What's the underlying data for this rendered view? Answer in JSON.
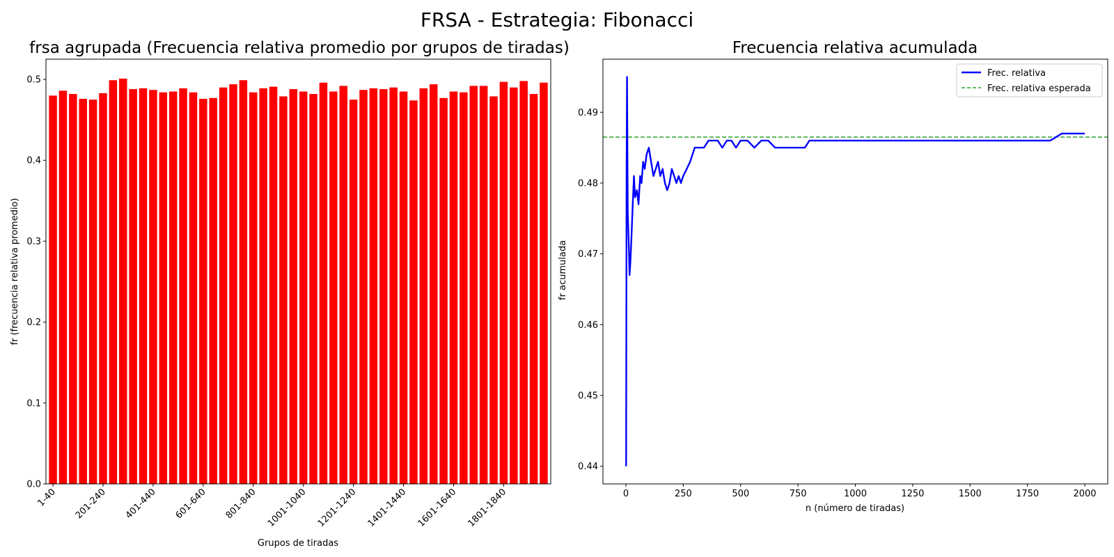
{
  "figure": {
    "title": "FRSA - Estrategia: Fibonacci"
  },
  "chart_data": [
    {
      "type": "bar",
      "title": "frsa agrupada (Frecuencia relativa promedio por grupos de tiradas)",
      "xlabel": "Grupos de tiradas",
      "ylabel": "fr (frecuencia relativa promedio)",
      "ylim": [
        0,
        0.525
      ],
      "yticks": [
        0.0,
        0.1,
        0.2,
        0.3,
        0.4,
        0.5
      ],
      "ytick_labels": [
        "0.0",
        "0.1",
        "0.2",
        "0.3",
        "0.4",
        "0.5"
      ],
      "bar_color": "#ff0000",
      "grid": false,
      "categories": [
        "1-40",
        "41-80",
        "81-120",
        "121-160",
        "161-200",
        "201-240",
        "241-280",
        "281-320",
        "321-360",
        "361-400",
        "401-440",
        "441-480",
        "481-520",
        "521-560",
        "561-600",
        "601-640",
        "641-680",
        "681-720",
        "721-760",
        "761-800",
        "801-840",
        "841-880",
        "881-920",
        "921-960",
        "961-1000",
        "1001-1040",
        "1041-1080",
        "1081-1120",
        "1121-1160",
        "1161-1200",
        "1201-1240",
        "1241-1280",
        "1281-1320",
        "1321-1360",
        "1361-1400",
        "1401-1440",
        "1441-1480",
        "1481-1520",
        "1521-1560",
        "1561-1600",
        "1601-1640",
        "1641-1680",
        "1681-1720",
        "1721-1760",
        "1761-1800",
        "1801-1840",
        "1841-1880",
        "1881-1920",
        "1921-1960",
        "1961-2000"
      ],
      "tick_categories": [
        "1-40",
        "201-240",
        "401-440",
        "601-640",
        "801-840",
        "1001-1040",
        "1201-1240",
        "1401-1440",
        "1601-1640",
        "1801-1840"
      ],
      "values": [
        0.48,
        0.486,
        0.482,
        0.476,
        0.475,
        0.483,
        0.499,
        0.501,
        0.488,
        0.489,
        0.487,
        0.484,
        0.485,
        0.489,
        0.484,
        0.476,
        0.477,
        0.49,
        0.494,
        0.499,
        0.484,
        0.489,
        0.491,
        0.479,
        0.488,
        0.485,
        0.482,
        0.496,
        0.485,
        0.492,
        0.475,
        0.487,
        0.489,
        0.488,
        0.49,
        0.485,
        0.474,
        0.489,
        0.494,
        0.477,
        0.485,
        0.484,
        0.492,
        0.492,
        0.479,
        0.497,
        0.49,
        0.498,
        0.482,
        0.496
      ]
    },
    {
      "type": "line",
      "title": "Frecuencia relativa acumulada",
      "xlabel": "n (número de tiradas)",
      "ylabel": "fr acumulada",
      "xlim": [
        -100,
        2100
      ],
      "ylim": [
        0.4375,
        0.4975
      ],
      "xticks": [
        0,
        250,
        500,
        750,
        1000,
        1250,
        1500,
        1750,
        2000
      ],
      "xtick_labels": [
        "0",
        "250",
        "500",
        "750",
        "1000",
        "1250",
        "1500",
        "1750",
        "2000"
      ],
      "yticks": [
        0.44,
        0.45,
        0.46,
        0.47,
        0.48,
        0.49
      ],
      "ytick_labels": [
        "0.44",
        "0.45",
        "0.46",
        "0.47",
        "0.48",
        "0.49"
      ],
      "grid": false,
      "legend": {
        "position": "top-right"
      },
      "series": [
        {
          "name": "Frec. relativa",
          "color": "#0000ff",
          "style": "solid",
          "points": [
            [
              1,
              0.44
            ],
            [
              3,
              0.48
            ],
            [
              5,
              0.495
            ],
            [
              8,
              0.476
            ],
            [
              12,
              0.472
            ],
            [
              16,
              0.467
            ],
            [
              20,
              0.469
            ],
            [
              25,
              0.473
            ],
            [
              30,
              0.477
            ],
            [
              35,
              0.481
            ],
            [
              40,
              0.478
            ],
            [
              48,
              0.479
            ],
            [
              55,
              0.477
            ],
            [
              62,
              0.481
            ],
            [
              68,
              0.48
            ],
            [
              75,
              0.483
            ],
            [
              82,
              0.482
            ],
            [
              90,
              0.484
            ],
            [
              100,
              0.485
            ],
            [
              110,
              0.483
            ],
            [
              120,
              0.481
            ],
            [
              130,
              0.482
            ],
            [
              140,
              0.483
            ],
            [
              150,
              0.481
            ],
            [
              160,
              0.482
            ],
            [
              170,
              0.48
            ],
            [
              180,
              0.479
            ],
            [
              190,
              0.48
            ],
            [
              200,
              0.482
            ],
            [
              210,
              0.481
            ],
            [
              220,
              0.48
            ],
            [
              230,
              0.481
            ],
            [
              240,
              0.48
            ],
            [
              250,
              0.481
            ],
            [
              265,
              0.482
            ],
            [
              280,
              0.483
            ],
            [
              290,
              0.484
            ],
            [
              300,
              0.485
            ],
            [
              320,
              0.485
            ],
            [
              340,
              0.485
            ],
            [
              360,
              0.486
            ],
            [
              380,
              0.486
            ],
            [
              400,
              0.486
            ],
            [
              420,
              0.485
            ],
            [
              440,
              0.486
            ],
            [
              460,
              0.486
            ],
            [
              480,
              0.485
            ],
            [
              500,
              0.486
            ],
            [
              530,
              0.486
            ],
            [
              560,
              0.485
            ],
            [
              590,
              0.486
            ],
            [
              620,
              0.486
            ],
            [
              650,
              0.485
            ],
            [
              670,
              0.485
            ],
            [
              700,
              0.485
            ],
            [
              730,
              0.485
            ],
            [
              760,
              0.485
            ],
            [
              780,
              0.485
            ],
            [
              800,
              0.486
            ],
            [
              830,
              0.486
            ],
            [
              860,
              0.486
            ],
            [
              900,
              0.486
            ],
            [
              950,
              0.486
            ],
            [
              1000,
              0.486
            ],
            [
              1050,
              0.486
            ],
            [
              1100,
              0.486
            ],
            [
              1150,
              0.486
            ],
            [
              1200,
              0.486
            ],
            [
              1250,
              0.486
            ],
            [
              1300,
              0.486
            ],
            [
              1350,
              0.486
            ],
            [
              1400,
              0.486
            ],
            [
              1450,
              0.486
            ],
            [
              1500,
              0.486
            ],
            [
              1550,
              0.486
            ],
            [
              1600,
              0.486
            ],
            [
              1650,
              0.486
            ],
            [
              1700,
              0.486
            ],
            [
              1750,
              0.486
            ],
            [
              1800,
              0.486
            ],
            [
              1850,
              0.486
            ],
            [
              1900,
              0.487
            ],
            [
              1950,
              0.487
            ],
            [
              2000,
              0.487
            ]
          ]
        },
        {
          "name": "Frec. relativa esperada",
          "color": "#2ca02c",
          "style": "dashed",
          "y": 0.4865
        }
      ]
    }
  ]
}
